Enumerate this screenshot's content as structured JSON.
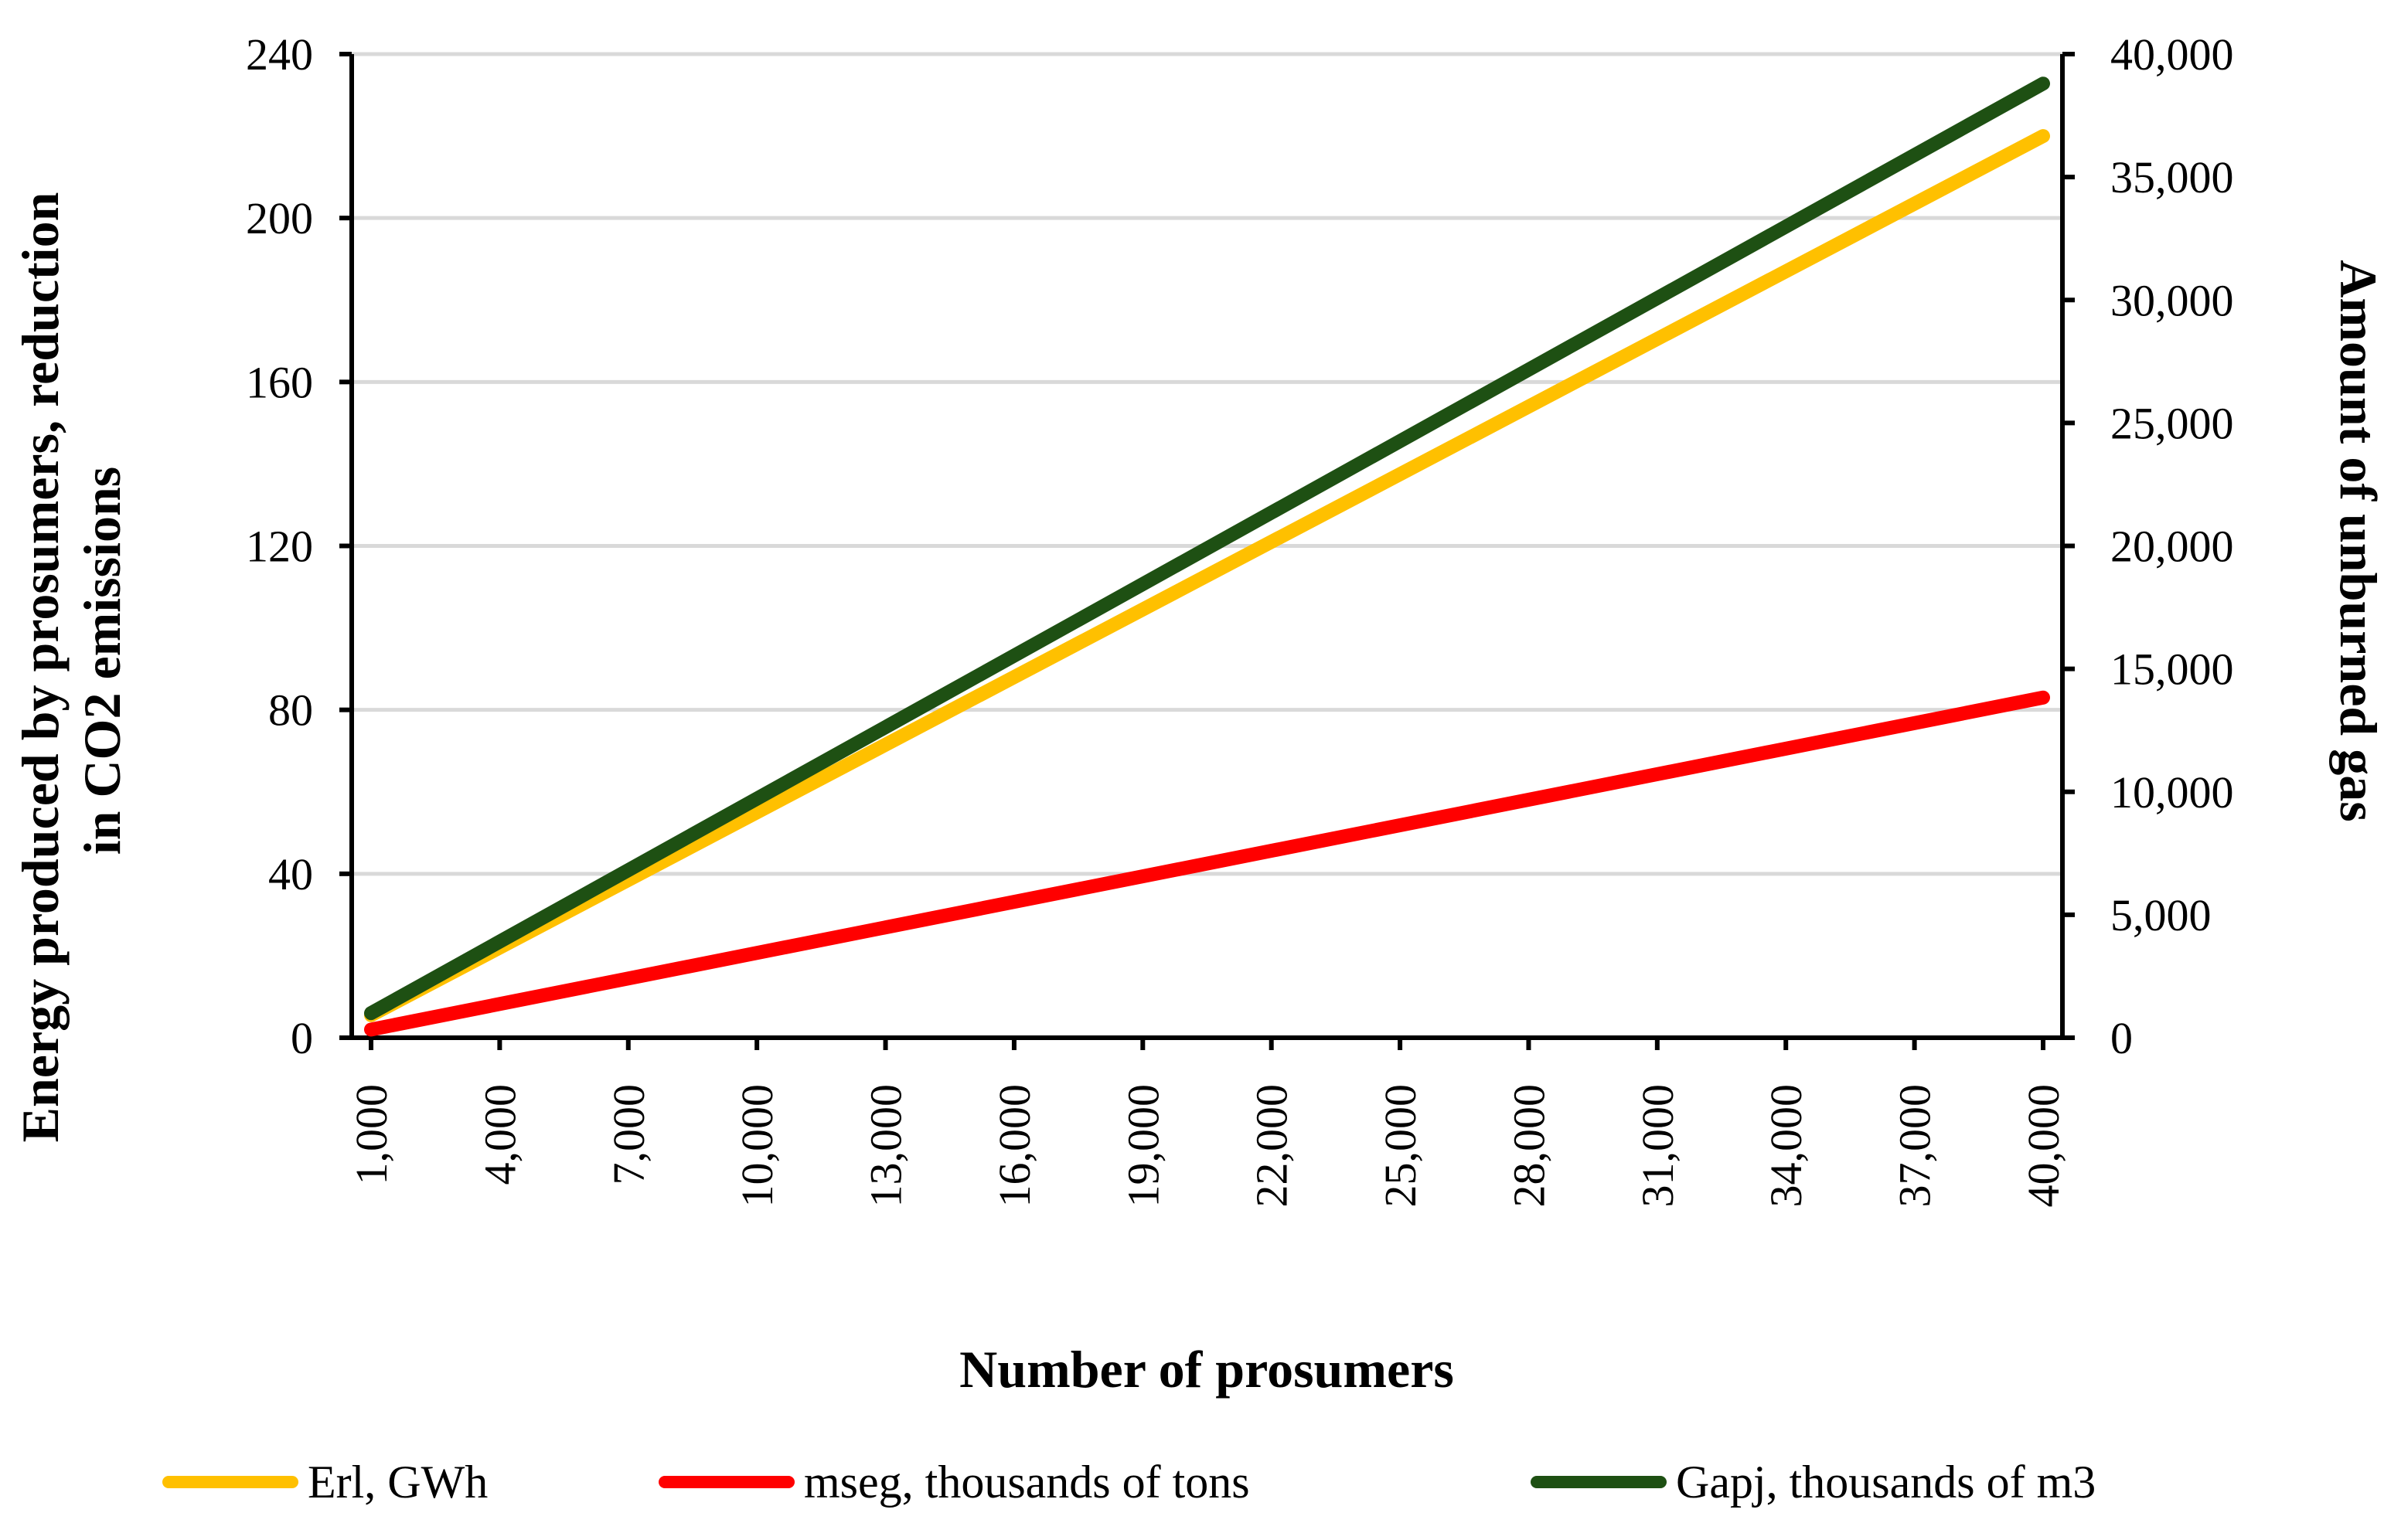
{
  "chart_data": {
    "type": "line",
    "title": "",
    "xlabel": "Number of prosumers",
    "ylabel": "Energy produced by prosumers, reduction in CO2 emissions",
    "y2label": "Amount of unburned gas",
    "x": [
      1000,
      4000,
      7000,
      10000,
      13000,
      16000,
      19000,
      22000,
      25000,
      28000,
      31000,
      34000,
      37000,
      40000
    ],
    "x_tick_labels": [
      "1,000",
      "4,000",
      "7,000",
      "10,000",
      "13,000",
      "16,000",
      "19,000",
      "22,000",
      "25,000",
      "28,000",
      "31,000",
      "34,000",
      "37,000",
      "40,000"
    ],
    "ylim": [
      0,
      240
    ],
    "y_ticks": [
      0,
      40,
      80,
      120,
      160,
      200,
      240
    ],
    "y_tick_labels": [
      "0",
      "40",
      "80",
      "120",
      "160",
      "200",
      "240"
    ],
    "y2lim": [
      0,
      40000
    ],
    "y2_ticks": [
      0,
      5000,
      10000,
      15000,
      20000,
      25000,
      30000,
      35000,
      40000
    ],
    "y2_tick_labels": [
      "0",
      "5,000",
      "10,000",
      "15,000",
      "20,000",
      "25,000",
      "30,000",
      "35,000",
      "40,000"
    ],
    "grid": true,
    "legend_position": "bottom",
    "series": [
      {
        "name": "Erl, GWh",
        "axis": "left",
        "color": "#FFC000",
        "x": [
          1000,
          40000
        ],
        "values": [
          5.5,
          220
        ]
      },
      {
        "name": "mseg, thousands of tons",
        "axis": "left",
        "color": "#FF0000",
        "x": [
          1000,
          40000
        ],
        "values": [
          2,
          83
        ]
      },
      {
        "name": "Gapj, thousands of m3",
        "axis": "right",
        "color": "#1E5013",
        "x": [
          1000,
          40000
        ],
        "values": [
          1000,
          38800
        ]
      }
    ]
  }
}
